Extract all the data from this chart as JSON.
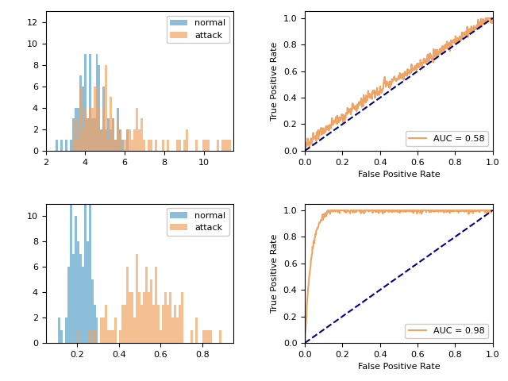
{
  "top_hist": {
    "xlim": [
      2,
      11.5
    ],
    "ylim": [
      0,
      13
    ],
    "bins": 80
  },
  "bottom_hist": {
    "xlim": [
      0.05,
      0.95
    ],
    "ylim": [
      0,
      11
    ],
    "bins": 80
  },
  "top_roc": {
    "auc": 0.58,
    "xlabel": "False Positive Rate",
    "ylabel": "True Positive Rate"
  },
  "bottom_roc": {
    "auc": 0.98,
    "xlabel": "False Positive Rate",
    "ylabel": "True Positive Rate"
  },
  "normal_color": "#5ba3c9",
  "attack_color": "#f0a463",
  "roc_color": "#f0a463",
  "diag_color": "#00008B",
  "alpha": 0.7
}
